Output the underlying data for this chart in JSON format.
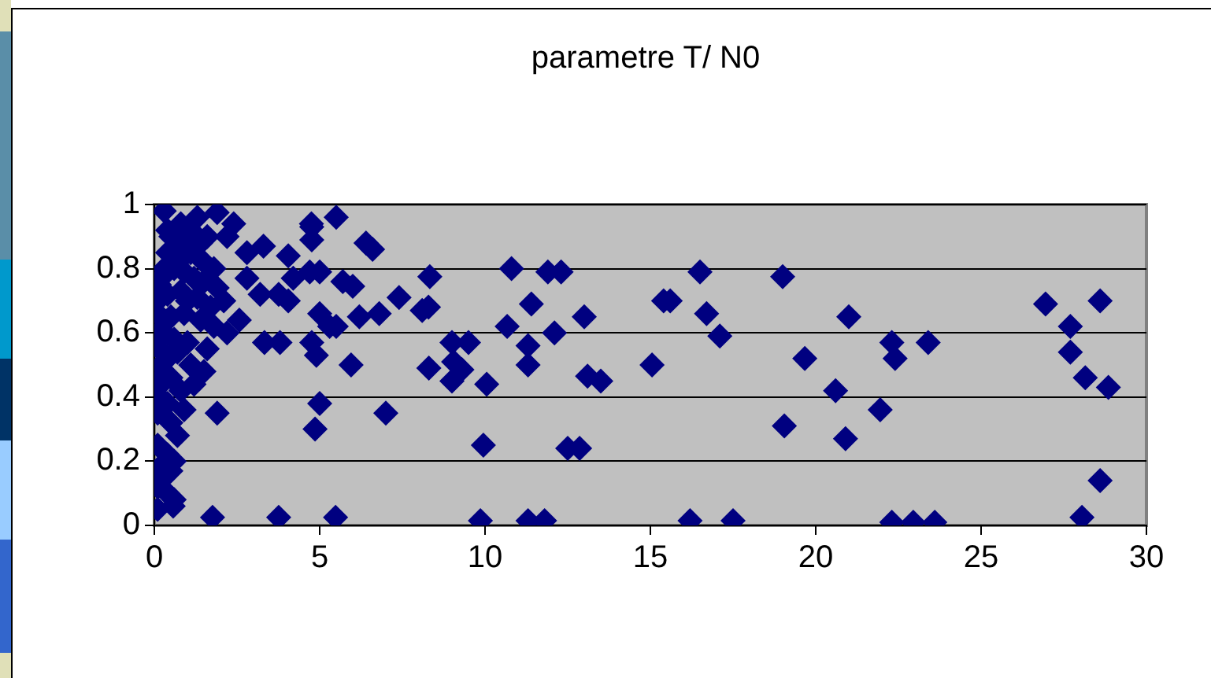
{
  "chart_data": {
    "type": "scatter",
    "title": "parametre T/ N0",
    "marker": "diamond",
    "grid": "y",
    "legend": false,
    "xlim": [
      0,
      30
    ],
    "xticks": [
      0,
      5,
      10,
      15,
      20,
      25,
      30
    ],
    "ylim": [
      0,
      1
    ],
    "yticks": [
      0,
      0.2,
      0.4,
      0.6,
      0.8,
      1
    ],
    "series": [
      {
        "color": "#000080",
        "x": [
          0.1,
          0.1,
          0.15,
          0.1,
          0.1,
          0.15,
          0.1,
          0.2,
          0.15,
          0.1,
          0.2,
          0.1,
          0.15,
          0.3,
          0.4,
          0.5,
          0.3,
          1.3,
          0.4,
          0.8,
          1.0,
          1.2,
          1.4,
          1.6,
          0.7,
          0.9,
          1.1,
          1.5,
          1.8,
          0.3,
          0.6,
          0.9,
          1.2,
          1.5,
          1.9,
          0.4,
          0.8,
          1.0,
          1.3,
          1.7,
          2.1,
          0.5,
          0.9,
          1.4,
          1.8,
          2.2,
          0.3,
          0.6,
          1.0,
          1.6,
          0.4,
          0.7,
          1.1,
          1.5,
          0.3,
          0.5,
          0.8,
          1.2,
          0.4,
          0.9,
          0.5,
          0.7,
          0.4,
          0.6,
          0.3,
          0.5,
          0.4,
          0.6,
          1.9,
          2.4,
          2.8,
          2.8,
          3.2,
          2.57,
          2.2,
          1.76,
          3.76,
          5.48,
          0.57,
          3.3,
          4.05,
          4.2,
          3.76,
          4.05,
          3.33,
          3.8,
          4.75,
          4.76,
          4.76,
          4.7,
          5.0,
          5.5,
          6.4,
          6.6,
          5.7,
          6.0,
          5.0,
          5.3,
          5.5,
          4.76,
          4.9,
          5.95,
          6.2,
          6.8,
          7.4,
          8.1,
          7.0,
          5.0,
          4.86,
          1.9,
          8.33,
          8.29,
          8.3,
          9.0,
          9.5,
          9.05,
          9.3,
          9.0,
          10.05,
          9.95,
          9.86,
          10.8,
          11.9,
          12.3,
          11.4,
          10.67,
          11.3,
          12.1,
          13.0,
          11.3,
          13.1,
          13.5,
          12.5,
          12.86,
          11.3,
          11.8,
          15.05,
          15.4,
          15.6,
          16.5,
          16.7,
          17.1,
          16.2,
          17.5,
          19.0,
          19.67,
          19.05,
          21.0,
          20.6,
          20.9,
          21.95,
          22.3,
          22.4,
          23.4,
          22.3,
          22.95,
          23.6,
          26.95,
          27.7,
          28.6,
          27.7,
          28.15,
          28.85,
          28.6,
          28.05
        ],
        "values": [
          0.05,
          0.12,
          0.18,
          0.25,
          0.35,
          0.4,
          0.45,
          0.5,
          0.55,
          0.6,
          0.65,
          0.7,
          0.75,
          0.8,
          0.85,
          0.9,
          0.98,
          0.96,
          0.92,
          0.94,
          0.9,
          0.91,
          0.88,
          0.9,
          0.86,
          0.84,
          0.85,
          0.82,
          0.8,
          0.78,
          0.8,
          0.79,
          0.77,
          0.76,
          0.74,
          0.72,
          0.73,
          0.7,
          0.71,
          0.68,
          0.7,
          0.65,
          0.66,
          0.64,
          0.62,
          0.6,
          0.6,
          0.58,
          0.57,
          0.55,
          0.52,
          0.54,
          0.5,
          0.48,
          0.45,
          0.46,
          0.42,
          0.44,
          0.38,
          0.36,
          0.32,
          0.28,
          0.22,
          0.2,
          0.15,
          0.17,
          0.1,
          0.08,
          0.975,
          0.94,
          0.85,
          0.77,
          0.72,
          0.64,
          0.9,
          0.025,
          0.025,
          0.025,
          0.06,
          0.87,
          0.84,
          0.77,
          0.72,
          0.7,
          0.57,
          0.57,
          0.94,
          0.93,
          0.89,
          0.79,
          0.79,
          0.96,
          0.88,
          0.86,
          0.76,
          0.745,
          0.66,
          0.62,
          0.62,
          0.57,
          0.53,
          0.5,
          0.65,
          0.66,
          0.71,
          0.67,
          0.35,
          0.38,
          0.3,
          0.35,
          0.775,
          0.68,
          0.49,
          0.57,
          0.57,
          0.51,
          0.485,
          0.45,
          0.44,
          0.25,
          0.015,
          0.8,
          0.79,
          0.79,
          0.69,
          0.62,
          0.56,
          0.6,
          0.65,
          0.5,
          0.465,
          0.45,
          0.24,
          0.24,
          0.015,
          0.015,
          0.5,
          0.7,
          0.7,
          0.79,
          0.66,
          0.59,
          0.015,
          0.015,
          0.775,
          0.52,
          0.31,
          0.65,
          0.42,
          0.27,
          0.36,
          0.57,
          0.52,
          0.57,
          0.01,
          0.01,
          0.01,
          0.69,
          0.62,
          0.7,
          0.54,
          0.46,
          0.43,
          0.14,
          0.025
        ]
      }
    ]
  }
}
